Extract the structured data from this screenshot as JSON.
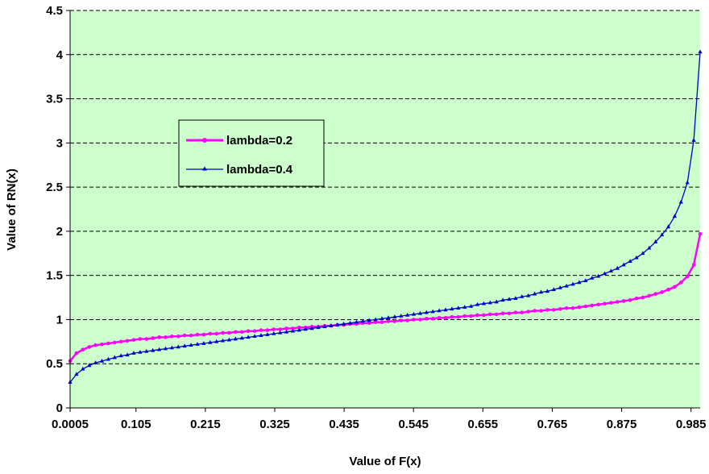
{
  "chart_data": {
    "type": "line",
    "title": "",
    "xlabel": "Value of F(x)",
    "ylabel": "Value of RN(x)",
    "xlim": [
      0.0005,
      0.9995
    ],
    "ylim": [
      0,
      4.5
    ],
    "yticks": [
      "0",
      "0.5",
      "1",
      "1.5",
      "2",
      "2.5",
      "3",
      "3.5",
      "4",
      "4.5"
    ],
    "xtick_labels": [
      "0.0005",
      "0.105",
      "0.215",
      "0.325",
      "0.435",
      "0.545",
      "0.655",
      "0.765",
      "0.875",
      "0.985"
    ],
    "x_start": 0.0005,
    "x_end": 0.9995,
    "point_count": 100,
    "grid": "horizontal dashed",
    "plot_background": "#ccffcc",
    "legend_position": "upper-left",
    "series": [
      {
        "name": "lambda=0.2",
        "color": "#ff00ff",
        "marker": "circle",
        "values": [
          0.53,
          0.62,
          0.66,
          0.69,
          0.71,
          0.72,
          0.73,
          0.74,
          0.75,
          0.76,
          0.77,
          0.78,
          0.78,
          0.79,
          0.8,
          0.8,
          0.81,
          0.81,
          0.82,
          0.82,
          0.83,
          0.83,
          0.84,
          0.84,
          0.85,
          0.85,
          0.86,
          0.86,
          0.87,
          0.87,
          0.88,
          0.88,
          0.89,
          0.89,
          0.9,
          0.9,
          0.91,
          0.91,
          0.92,
          0.92,
          0.93,
          0.93,
          0.94,
          0.94,
          0.95,
          0.95,
          0.96,
          0.96,
          0.97,
          0.97,
          0.98,
          0.98,
          0.99,
          0.99,
          1.0,
          1.0,
          1.01,
          1.01,
          1.02,
          1.02,
          1.03,
          1.03,
          1.04,
          1.04,
          1.05,
          1.05,
          1.06,
          1.06,
          1.07,
          1.07,
          1.08,
          1.08,
          1.09,
          1.1,
          1.1,
          1.11,
          1.11,
          1.12,
          1.13,
          1.13,
          1.14,
          1.15,
          1.16,
          1.17,
          1.18,
          1.19,
          1.2,
          1.21,
          1.22,
          1.24,
          1.25,
          1.27,
          1.29,
          1.31,
          1.34,
          1.37,
          1.42,
          1.49,
          1.62,
          1.97
        ]
      },
      {
        "name": "lambda=0.4",
        "color": "#0000cc",
        "marker": "triangle",
        "values": [
          0.29,
          0.38,
          0.44,
          0.48,
          0.51,
          0.53,
          0.55,
          0.57,
          0.59,
          0.6,
          0.62,
          0.63,
          0.64,
          0.65,
          0.66,
          0.67,
          0.68,
          0.69,
          0.7,
          0.71,
          0.72,
          0.73,
          0.74,
          0.75,
          0.76,
          0.77,
          0.78,
          0.79,
          0.8,
          0.81,
          0.82,
          0.83,
          0.84,
          0.85,
          0.86,
          0.87,
          0.88,
          0.89,
          0.9,
          0.91,
          0.92,
          0.93,
          0.94,
          0.95,
          0.96,
          0.97,
          0.98,
          0.99,
          1.0,
          1.01,
          1.02,
          1.03,
          1.04,
          1.05,
          1.06,
          1.07,
          1.08,
          1.09,
          1.1,
          1.11,
          1.12,
          1.13,
          1.14,
          1.15,
          1.17,
          1.18,
          1.19,
          1.2,
          1.22,
          1.23,
          1.24,
          1.26,
          1.27,
          1.29,
          1.31,
          1.32,
          1.34,
          1.36,
          1.38,
          1.4,
          1.42,
          1.44,
          1.47,
          1.49,
          1.52,
          1.55,
          1.58,
          1.62,
          1.66,
          1.7,
          1.75,
          1.81,
          1.88,
          1.96,
          2.05,
          2.17,
          2.33,
          2.55,
          3.03,
          4.03
        ]
      }
    ]
  }
}
